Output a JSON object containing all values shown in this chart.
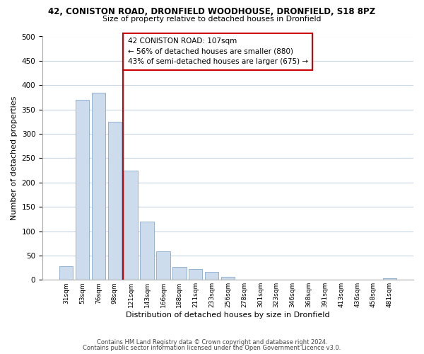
{
  "title_line1": "42, CONISTON ROAD, DRONFIELD WOODHOUSE, DRONFIELD, S18 8PZ",
  "title_line2": "Size of property relative to detached houses in Dronfield",
  "xlabel": "Distribution of detached houses by size in Dronfield",
  "ylabel": "Number of detached properties",
  "bar_labels": [
    "31sqm",
    "53sqm",
    "76sqm",
    "98sqm",
    "121sqm",
    "143sqm",
    "166sqm",
    "188sqm",
    "211sqm",
    "233sqm",
    "256sqm",
    "278sqm",
    "301sqm",
    "323sqm",
    "346sqm",
    "368sqm",
    "391sqm",
    "413sqm",
    "436sqm",
    "458sqm",
    "481sqm"
  ],
  "bar_values": [
    28,
    370,
    385,
    325,
    225,
    120,
    58,
    27,
    22,
    17,
    6,
    1,
    0,
    0,
    0,
    0,
    0,
    0,
    0,
    0,
    3
  ],
  "bar_color": "#ccdcec",
  "bar_edge_color": "#88aacc",
  "vline_x": 3.5,
  "vline_color": "#cc0000",
  "ylim": [
    0,
    500
  ],
  "yticks": [
    0,
    50,
    100,
    150,
    200,
    250,
    300,
    350,
    400,
    450,
    500
  ],
  "annotation_title": "42 CONISTON ROAD: 107sqm",
  "annotation_line1": "← 56% of detached houses are smaller (880)",
  "annotation_line2": "43% of semi-detached houses are larger (675) →",
  "annotation_box_color": "#ffffff",
  "annotation_box_edge": "#cc0000",
  "footer_line1": "Contains HM Land Registry data © Crown copyright and database right 2024.",
  "footer_line2": "Contains public sector information licensed under the Open Government Licence v3.0.",
  "background_color": "#ffffff",
  "grid_color": "#c8d4e0"
}
